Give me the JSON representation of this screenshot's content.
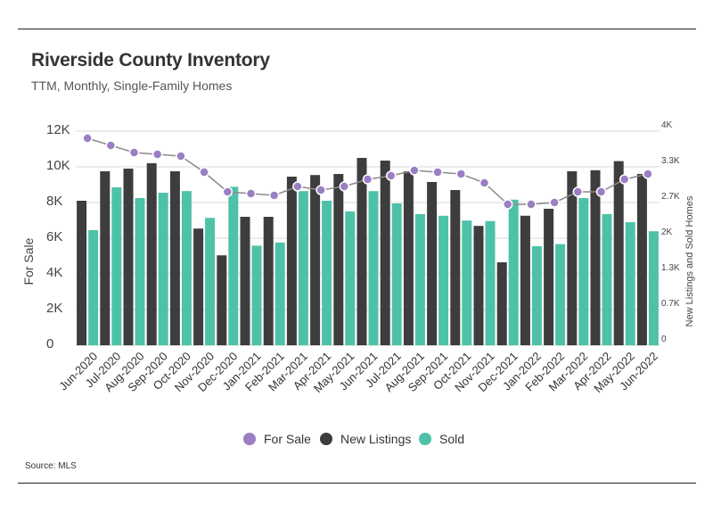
{
  "title": "Riverside County Inventory",
  "subtitle": "TTM, Monthly, Single-Family Homes",
  "source": "Source:  MLS",
  "colors": {
    "for_sale": "#9b7fc2",
    "new_listings": "#3d3d3d",
    "sold": "#4ec2a9",
    "grid": "#d9d9d9"
  },
  "chart_data": {
    "type": "bar",
    "categories": [
      "Jun-2020",
      "Jul-2020",
      "Aug-2020",
      "Sep-2020",
      "Oct-2020",
      "Nov-2020",
      "Dec-2020",
      "Jan-2021",
      "Feb-2021",
      "Mar-2021",
      "Apr-2021",
      "May-2021",
      "Jun-2021",
      "Jul-2021",
      "Aug-2021",
      "Sep-2021",
      "Oct-2021",
      "Nov-2021",
      "Dec-2021",
      "Jan-2022",
      "Feb-2022",
      "Mar-2022",
      "Apr-2022",
      "May-2022",
      "Jun-2022"
    ],
    "ylabel": "For Sale",
    "y2label": "New Listings and Sold Homes",
    "ylim": [
      0,
      12000
    ],
    "y2lim": [
      0,
      4000
    ],
    "yticks": [
      "0",
      "2K",
      "4K",
      "6K",
      "8K",
      "10K",
      "12K"
    ],
    "y2ticks": [
      "0",
      "0.7K",
      "1.3K",
      "2K",
      "2.7K",
      "3.3K",
      "4K"
    ],
    "grid": true,
    "legend_position": "bottom",
    "series": [
      {
        "name": "For Sale",
        "type": "line",
        "axis": "left",
        "values": [
          11600,
          11200,
          10800,
          10700,
          10600,
          9700,
          8600,
          8500,
          8400,
          8900,
          8700,
          8900,
          9300,
          9500,
          9800,
          9700,
          9600,
          9100,
          7900,
          7900,
          8000,
          8600,
          8600,
          9300,
          9600
        ]
      },
      {
        "name": "New Listings",
        "type": "bar",
        "axis": "right",
        "values": [
          2700,
          3250,
          3300,
          3400,
          3250,
          2180,
          1680,
          2400,
          2400,
          3150,
          3180,
          3200,
          3500,
          3450,
          3250,
          3050,
          2900,
          2230,
          1550,
          2420,
          2550,
          3250,
          3270,
          3440,
          3200
        ]
      },
      {
        "name": "Sold",
        "type": "bar",
        "axis": "right",
        "values": [
          2150,
          2950,
          2750,
          2850,
          2880,
          2380,
          2960,
          1860,
          1920,
          2880,
          2700,
          2500,
          2880,
          2650,
          2450,
          2420,
          2330,
          2320,
          2720,
          1850,
          1890,
          2750,
          2450,
          2300,
          2130
        ]
      }
    ]
  }
}
